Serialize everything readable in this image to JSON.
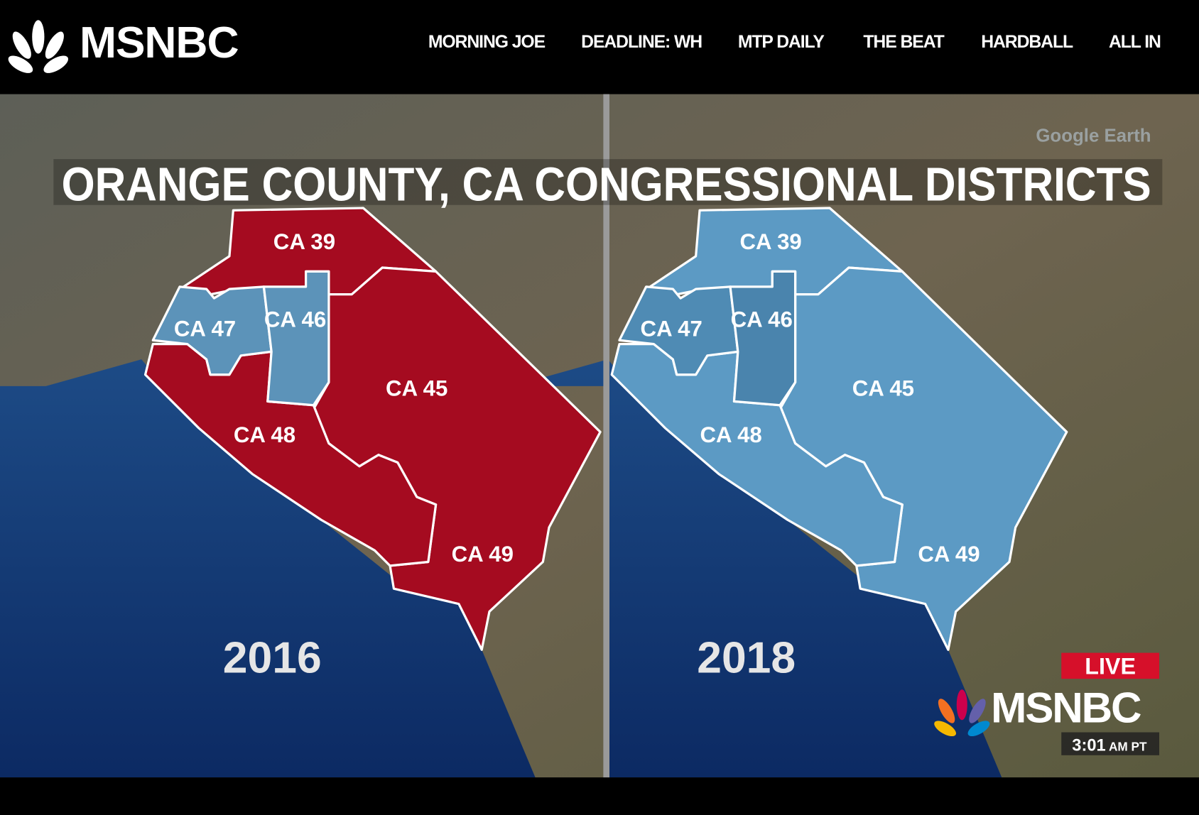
{
  "header": {
    "logo": "MSNBC",
    "nav": [
      "MORNING JOE",
      "DEADLINE: WH",
      "MTP DAILY",
      "THE BEAT",
      "HARDBALL",
      "ALL IN"
    ]
  },
  "video": {
    "title": "ORANGE COUNTY, CA CONGRESSIONAL DISTRICTS",
    "watermark": "Google Earth",
    "panels": [
      {
        "year": "2016",
        "districts": [
          "CA 39",
          "CA 47",
          "CA 46",
          "CA 45",
          "CA 48",
          "CA 49"
        ]
      },
      {
        "year": "2018",
        "districts": [
          "CA 39",
          "CA 47",
          "CA 46",
          "CA 45",
          "CA 48",
          "CA 49"
        ]
      }
    ],
    "live": "LIVE",
    "logo": "MSNBC",
    "time": "3:01",
    "time_suffix": "AM PT"
  }
}
